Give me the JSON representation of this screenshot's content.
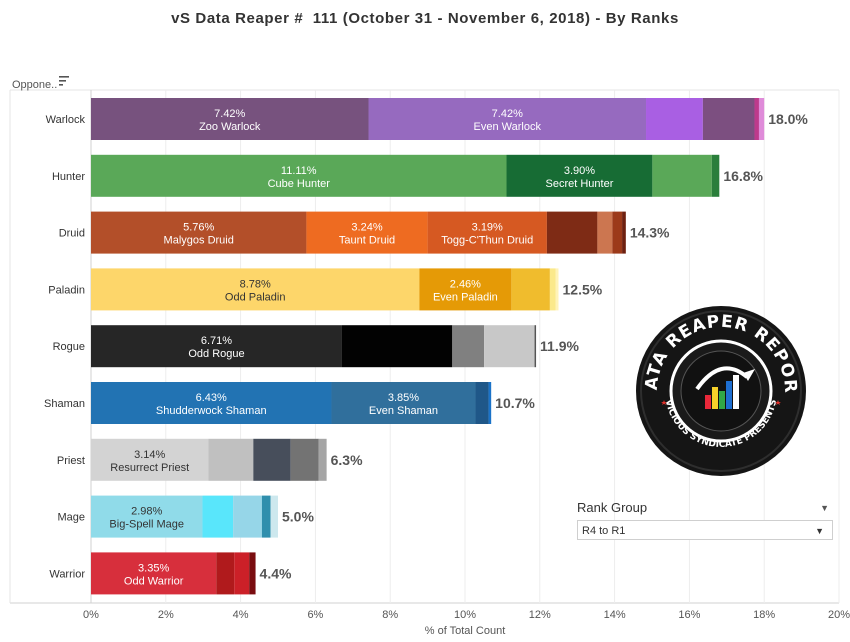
{
  "title": "vS Data Reaper #  111 (October 31 - November 6, 2018) - By Ranks",
  "chart_data": {
    "type": "bar",
    "orientation": "horizontal",
    "stacked": true,
    "row_header": "Oppone..",
    "xlabel": "% of Total Count",
    "xlim": [
      0,
      20
    ],
    "x_ticks": [
      "0%",
      "2%",
      "4%",
      "6%",
      "8%",
      "10%",
      "12%",
      "14%",
      "16%",
      "18%",
      "20%"
    ],
    "grid": "vertical",
    "rows": [
      {
        "class": "Warlock",
        "total": 18.0,
        "total_label": "18.0%",
        "segments": [
          {
            "value": 7.42,
            "label": "7.42%",
            "name": "Zoo Warlock",
            "color": "#77527e"
          },
          {
            "value": 7.42,
            "label": "7.42%",
            "name": "Even Warlock",
            "color": "#966abf"
          },
          {
            "value": 1.52,
            "color": "#a95fe3"
          },
          {
            "value": 1.38,
            "color": "#7c4f80"
          },
          {
            "value": 0.12,
            "color": "#bd3a8c"
          },
          {
            "value": 0.14,
            "color": "#df8bd9"
          }
        ]
      },
      {
        "class": "Hunter",
        "total": 16.8,
        "total_label": "16.8%",
        "segments": [
          {
            "value": 11.11,
            "label": "11.11%",
            "name": "Cube Hunter",
            "color": "#5aa858"
          },
          {
            "value": 3.9,
            "label": "3.90%",
            "name": "Secret Hunter",
            "color": "#176c34"
          },
          {
            "value": 1.59,
            "color": "#5aa858"
          },
          {
            "value": 0.2,
            "color": "#2a7e3b"
          }
        ]
      },
      {
        "class": "Druid",
        "total": 14.3,
        "total_label": "14.3%",
        "segments": [
          {
            "value": 5.76,
            "label": "5.76%",
            "name": "Malygos Druid",
            "color": "#b34f29"
          },
          {
            "value": 3.24,
            "label": "3.24%",
            "name": "Taunt Druid",
            "color": "#ee6b21"
          },
          {
            "value": 3.19,
            "label": "3.19%",
            "name": "Togg-C'Thun Druid",
            "color": "#d65922"
          },
          {
            "value": 1.35,
            "color": "#7e2b15"
          },
          {
            "value": 0.4,
            "color": "#cc7650"
          },
          {
            "value": 0.26,
            "color": "#9c3a1a"
          },
          {
            "value": 0.1,
            "color": "#6e2010"
          }
        ]
      },
      {
        "class": "Paladin",
        "total": 12.5,
        "total_label": "12.5%",
        "segments": [
          {
            "value": 8.78,
            "label": "8.78%",
            "name": "Odd Paladin",
            "color": "#fdd66a"
          },
          {
            "value": 2.46,
            "label": "2.46%",
            "name": "Even Paladin",
            "color": "#e59a06"
          },
          {
            "value": 1.03,
            "color": "#f0bc2d"
          },
          {
            "value": 0.15,
            "color": "#fbe98b"
          },
          {
            "value": 0.08,
            "color": "#fff3b8"
          }
        ]
      },
      {
        "class": "Rogue",
        "total": 11.9,
        "total_label": "11.9%",
        "segments": [
          {
            "value": 6.71,
            "label": "6.71%",
            "name": "Odd Rogue",
            "color": "#262626"
          },
          {
            "value": 2.95,
            "color": "#020202"
          },
          {
            "value": 0.85,
            "color": "#808080"
          },
          {
            "value": 1.35,
            "color": "#c8c8c8"
          },
          {
            "value": 0.04,
            "color": "#555555"
          }
        ]
      },
      {
        "class": "Shaman",
        "total": 10.7,
        "total_label": "10.7%",
        "segments": [
          {
            "value": 6.43,
            "label": "6.43%",
            "name": "Shudderwock Shaman",
            "color": "#2273b3"
          },
          {
            "value": 3.85,
            "label": "3.85%",
            "name": "Even Shaman",
            "color": "#306f9c"
          },
          {
            "value": 0.35,
            "color": "#1f5788"
          },
          {
            "value": 0.07,
            "color": "#1a72c8"
          }
        ]
      },
      {
        "class": "Priest",
        "total": 6.3,
        "total_label": "6.3%",
        "segments": [
          {
            "value": 3.14,
            "label": "3.14%",
            "name": "Resurrect Priest",
            "color": "#d3d3d3"
          },
          {
            "value": 1.2,
            "color": "#c0c0c0"
          },
          {
            "value": 1.0,
            "color": "#474e5b"
          },
          {
            "value": 0.75,
            "color": "#737373"
          },
          {
            "value": 0.21,
            "color": "#a5a5a5"
          }
        ]
      },
      {
        "class": "Mage",
        "total": 5.0,
        "total_label": "5.0%",
        "segments": [
          {
            "value": 2.98,
            "label": "2.98%",
            "name": "Big-Spell Mage",
            "color": "#90dbe9"
          },
          {
            "value": 0.82,
            "color": "#59e6fb"
          },
          {
            "value": 0.77,
            "color": "#96d6e8"
          },
          {
            "value": 0.23,
            "color": "#2f8fad"
          },
          {
            "value": 0.2,
            "color": "#cde8ee"
          }
        ]
      },
      {
        "class": "Warrior",
        "total": 4.4,
        "total_label": "4.4%",
        "segments": [
          {
            "value": 3.35,
            "label": "3.35%",
            "name": "Odd Warrior",
            "color": "#d72f3c"
          },
          {
            "value": 0.48,
            "color": "#b01a1c"
          },
          {
            "value": 0.4,
            "color": "#cc2028"
          },
          {
            "value": 0.17,
            "color": "#7a0d10"
          }
        ]
      }
    ]
  },
  "rank_filter": {
    "title": "Rank Group",
    "value": "R4 to R1",
    "caret_icon": "caret-down-icon"
  },
  "logo": {
    "text_top": "DATA REAPER REPORT",
    "text_bottom": "VICIOUS SYNDICATE PRESENTS"
  }
}
